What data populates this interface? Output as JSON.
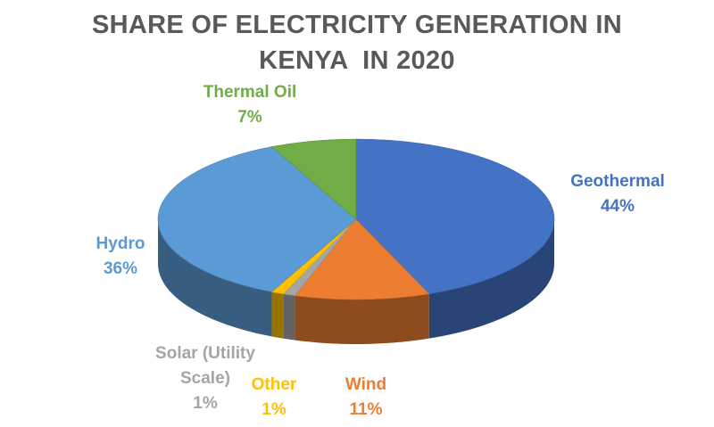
{
  "chart_data": {
    "type": "pie",
    "title_line1": "SHARE OF ELECTRICITY GENERATION IN",
    "title_line2": "KENYA  IN 2020",
    "slices": [
      {
        "name": "Geothermal",
        "value": 44,
        "pct_label": "44%",
        "color": "#4472C4"
      },
      {
        "name": "Wind",
        "value": 11,
        "pct_label": "11%",
        "color": "#ED7D31"
      },
      {
        "name": "Solar (Utility Scale)",
        "name_lines": [
          "Solar (Utility",
          "Scale)"
        ],
        "value": 1,
        "pct_label": "1%",
        "color": "#A5A5A5"
      },
      {
        "name": "Other",
        "value": 1,
        "pct_label": "1%",
        "color": "#FFC000"
      },
      {
        "name": "Hydro",
        "value": 36,
        "pct_label": "36%",
        "color": "#5B9BD5"
      },
      {
        "name": "Thermal Oil",
        "value": 7,
        "pct_label": "7%",
        "color": "#70AD47"
      }
    ],
    "style": "3d-pie"
  }
}
